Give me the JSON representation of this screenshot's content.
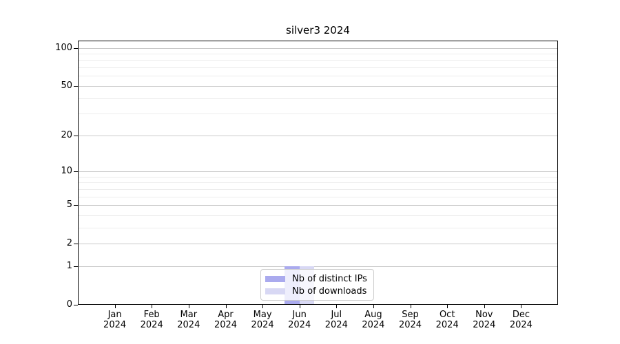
{
  "chart_data": {
    "type": "bar",
    "title": "silver3 2024",
    "x_tick_months": [
      "Jan",
      "Feb",
      "Mar",
      "Apr",
      "May",
      "Jun",
      "Jul",
      "Aug",
      "Sep",
      "Oct",
      "Nov",
      "Dec"
    ],
    "x_tick_year": "2024",
    "series": [
      {
        "name": "Nb of distinct IPs",
        "color": "#aaaaee",
        "values": [
          0,
          0,
          0,
          0,
          0,
          1,
          0,
          0,
          0,
          0,
          0,
          0
        ]
      },
      {
        "name": "Nb of downloads",
        "color": "#d8d8f4",
        "values": [
          0,
          0,
          0,
          0,
          0,
          1,
          0,
          0,
          0,
          0,
          0,
          0
        ]
      }
    ],
    "y_axis": {
      "scale": "log10(1+value)",
      "tick_values": [
        0,
        1,
        2,
        5,
        10,
        20,
        50,
        100
      ],
      "minor_gridline_values": [
        3,
        4,
        6,
        7,
        8,
        9,
        30,
        40,
        60,
        70,
        80,
        90
      ],
      "ylim": [
        0,
        114
      ]
    },
    "grid": {
      "major_color": "#c9c9c9",
      "minor_color": "#ececec"
    },
    "legend": {
      "position": "lower center"
    }
  }
}
